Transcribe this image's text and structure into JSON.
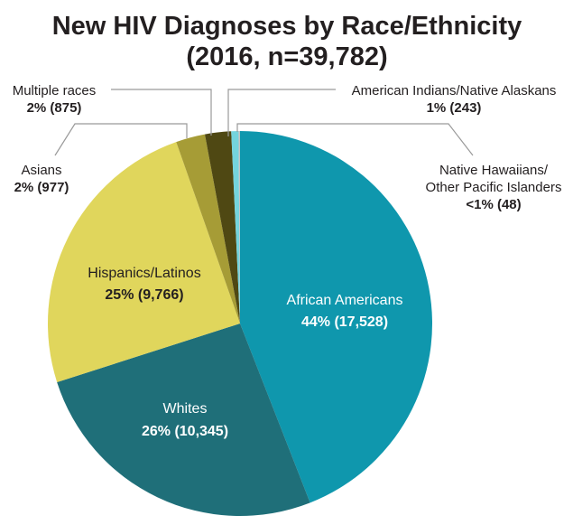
{
  "chart_data": {
    "type": "pie",
    "title": "New HIV Diagnoses by Race/Ethnicity",
    "subtitle": "(2016, n=39,782)",
    "start": "12 o'clock, clockwise",
    "slices": [
      {
        "name": "African Americans",
        "value": 17528,
        "label": "44% (17,528)",
        "color": "#0f97ad"
      },
      {
        "name": "Whites",
        "value": 10345,
        "label": "26% (10,345)",
        "color": "#1f6f79"
      },
      {
        "name": "Hispanics/Latinos",
        "value": 9766,
        "label": "25% (9,766)",
        "color": "#e0d65c"
      },
      {
        "name": "Asians",
        "value": 977,
        "label": "2% (977)",
        "color": "#a69c36"
      },
      {
        "name": "Multiple races",
        "value": 875,
        "label": "2% (875)",
        "color": "#4f4813"
      },
      {
        "name": "American Indians/Native Alaskans",
        "value": 243,
        "label": "1% (243)",
        "color": "#74d4dd"
      },
      {
        "name": "Native Hawaiians/ Other Pacific Islanders",
        "name_lines": [
          "Native Hawaiians/",
          "Other Pacific Islanders"
        ],
        "value": 48,
        "label": "<1% (48)",
        "color": "#c2c2c2"
      }
    ]
  }
}
